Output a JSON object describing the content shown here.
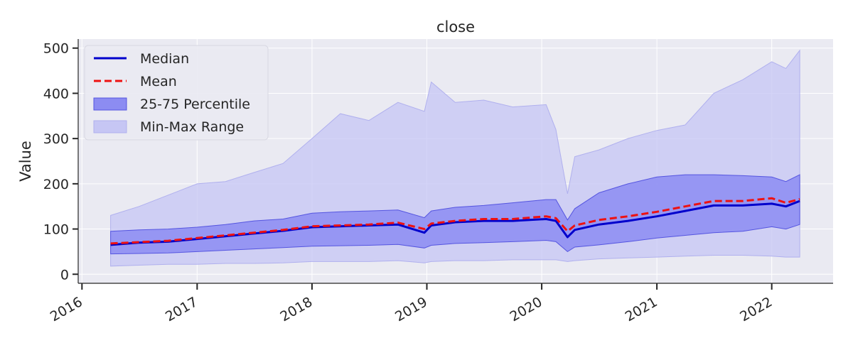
{
  "chart_data": {
    "type": "area",
    "title": "close",
    "xlabel": "",
    "ylabel": "Value",
    "xlim": [
      "2015-12-20",
      "2022-07-15"
    ],
    "ylim": [
      -20,
      520
    ],
    "x_ticks": [
      "2016",
      "2017",
      "2018",
      "2019",
      "2020",
      "2021",
      "2022"
    ],
    "y_ticks": [
      0,
      100,
      200,
      300,
      400,
      500
    ],
    "grid": true,
    "legend_position": "top-left",
    "x": [
      "2016-04-01",
      "2016-07-01",
      "2016-10-01",
      "2017-01-01",
      "2017-04-01",
      "2017-07-01",
      "2017-10-01",
      "2018-01-01",
      "2018-04-01",
      "2018-07-01",
      "2018-10-01",
      "2018-12-24",
      "2019-01-15",
      "2019-04-01",
      "2019-07-01",
      "2019-10-01",
      "2020-01-15",
      "2020-02-15",
      "2020-03-23",
      "2020-04-15",
      "2020-07-01",
      "2020-10-01",
      "2021-01-01",
      "2021-04-01",
      "2021-07-01",
      "2021-10-01",
      "2022-01-01",
      "2022-02-15",
      "2022-03-31"
    ],
    "series": [
      {
        "name": "Median",
        "color": "#0000cc",
        "style": "solid",
        "values": [
          65,
          70,
          72,
          78,
          84,
          90,
          96,
          104,
          106,
          108,
          110,
          92,
          108,
          115,
          118,
          118,
          122,
          118,
          82,
          98,
          110,
          118,
          128,
          140,
          152,
          152,
          156,
          150,
          162
        ]
      },
      {
        "name": "Mean",
        "color": "#ee1111",
        "style": "dashed",
        "values": [
          68,
          71,
          74,
          80,
          86,
          92,
          98,
          106,
          108,
          110,
          114,
          100,
          112,
          118,
          122,
          122,
          128,
          124,
          95,
          108,
          120,
          128,
          138,
          150,
          162,
          162,
          168,
          158,
          166
        ]
      },
      {
        "name": "25-75 Percentile",
        "color": "#4040f0",
        "style": "band",
        "lower": [
          45,
          46,
          47,
          50,
          53,
          56,
          59,
          62,
          63,
          64,
          66,
          58,
          64,
          68,
          70,
          72,
          75,
          72,
          50,
          60,
          65,
          72,
          80,
          86,
          92,
          95,
          105,
          100,
          110
        ],
        "upper": [
          95,
          98,
          100,
          104,
          110,
          118,
          122,
          135,
          138,
          140,
          142,
          125,
          140,
          148,
          152,
          158,
          165,
          165,
          120,
          145,
          180,
          200,
          215,
          220,
          220,
          218,
          215,
          205,
          220
        ]
      },
      {
        "name": "Min-Max Range",
        "color": "#b8b8ec",
        "style": "band",
        "lower": [
          18,
          20,
          22,
          22,
          24,
          24,
          25,
          28,
          28,
          28,
          30,
          25,
          28,
          30,
          30,
          32,
          32,
          32,
          28,
          30,
          34,
          36,
          38,
          40,
          42,
          42,
          40,
          38,
          38
        ],
        "upper": [
          130,
          150,
          175,
          200,
          205,
          225,
          245,
          300,
          355,
          340,
          380,
          360,
          425,
          380,
          385,
          370,
          375,
          320,
          178,
          260,
          275,
          300,
          318,
          330,
          400,
          430,
          470,
          455,
          495
        ]
      }
    ]
  }
}
